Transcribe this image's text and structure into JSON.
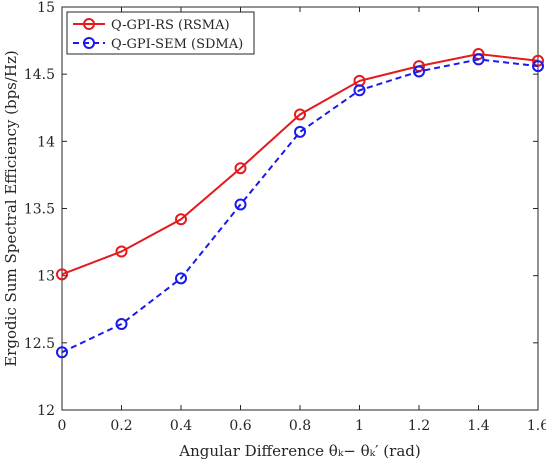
{
  "chart_data": {
    "type": "line",
    "xlabel": "Angular Difference θₖ−  θₖ′ (rad)",
    "ylabel": "Ergodic Sum Spectral Efficiency (bps/Hz)",
    "xlim": [
      0,
      1.6
    ],
    "ylim": [
      12,
      15
    ],
    "xticks": [
      "0",
      "0.2",
      "0.4",
      "0.6",
      "0.8",
      "1",
      "1.2",
      "1.4",
      "1.6"
    ],
    "yticks": [
      "12",
      "12.5",
      "13",
      "13.5",
      "14",
      "14.5",
      "15"
    ],
    "x": [
      0,
      0.2,
      0.4,
      0.6,
      0.8,
      1.0,
      1.2,
      1.4,
      1.6
    ],
    "grid": false,
    "legend_position": "top-left",
    "series": [
      {
        "name": "Q-GPI-RS (RSMA)",
        "color": "#e41a1c",
        "line_style": "solid",
        "marker": "circle",
        "values": [
          13.01,
          13.18,
          13.42,
          13.8,
          14.2,
          14.45,
          14.56,
          14.65,
          14.6
        ]
      },
      {
        "name": "Q-GPI-SEM (SDMA)",
        "color": "#1a1aee",
        "line_style": "dashed",
        "marker": "circle",
        "values": [
          12.43,
          12.64,
          12.98,
          13.53,
          14.07,
          14.38,
          14.52,
          14.61,
          14.56
        ]
      }
    ]
  }
}
